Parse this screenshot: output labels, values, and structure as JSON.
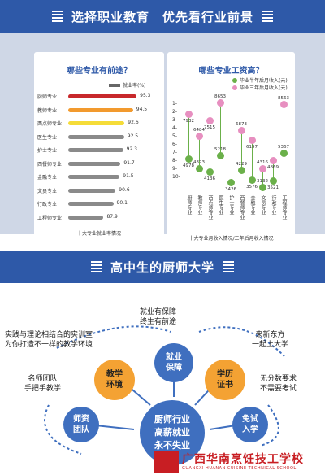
{
  "headers": {
    "top": "选择职业教育　优先看行业前景",
    "middle": "高中生的厨师大学"
  },
  "employment_chart": {
    "title": "哪些专业有前途？",
    "legend": "就业率(%)",
    "caption": "十大专业就业率情况",
    "majors": [
      "厨师专业",
      "教师专业",
      "西点师专业",
      "医生专业",
      "护士专业",
      "西餐师专业",
      "金融专业",
      "文员专业",
      "行政专业",
      "工程师专业"
    ],
    "values": [
      95.3,
      94.5,
      92.6,
      92.5,
      92.3,
      91.7,
      91.5,
      90.6,
      90.1,
      87.9
    ],
    "value_labels": [
      "95.3",
      "94.5",
      "92.6",
      "92.5",
      "92.3",
      "91.7",
      "91.5",
      "90.6",
      "90.1",
      "87.9"
    ],
    "colors": [
      "#c8282b",
      "#f29a2e",
      "#f5dc38",
      "#8a8a8a",
      "#8a8a8a",
      "#8a8a8a",
      "#8a8a8a",
      "#8a8a8a",
      "#8a8a8a",
      "#8a8a8a"
    ]
  },
  "salary_chart": {
    "title": "哪些专业工资高？",
    "legend_half": "毕业半年后月收入(元)",
    "legend_three": "毕业三年后月收入(元)",
    "caption": "十大专业月收入情况/三年后月收入情况",
    "ranks": [
      "1-",
      "2-",
      "3-",
      "4-",
      "5-",
      "6-",
      "7-",
      "8-",
      "9-",
      "10-"
    ],
    "majors": [
      "厨师专业",
      "教师专业",
      "西点师专业",
      "医生专业",
      "护士专业",
      "西餐师专业",
      "金融专业",
      "文员专业",
      "行政专业",
      "工程师专业"
    ],
    "half_year": [
      4978,
      4323,
      4136,
      5218,
      3426,
      4229,
      3576,
      3132,
      3521,
      5367
    ],
    "three_year": [
      7932,
      6484,
      7515,
      8653,
      null,
      6873,
      6197,
      4316,
      4869,
      8563
    ],
    "half_year_labels": [
      "4978",
      "4323",
      "4136",
      "5218",
      "3426",
      "4229",
      "3576",
      "3132",
      "3521",
      "5367"
    ],
    "three_year_labels": [
      "7932",
      "6484",
      "7515",
      "8653",
      "",
      "6873",
      "6197",
      "4316",
      "4869",
      "8563"
    ],
    "color_half": "#6bb04a",
    "color_three": "#e78fc0"
  },
  "diagram": {
    "center": "厨师行业\n高薪就业\n永不失业",
    "nodes": {
      "employ": "就业\n保障",
      "teach": "教学\n环境",
      "cert": "学历\n证书",
      "team": "师资\n团队",
      "exam": "免试\n入学"
    },
    "texts": {
      "employ": "就业有保障\n终生有前途",
      "teach": "实践与理论相结合的实训室\n为你打造不一样的教学环境",
      "cert": "来新东方\n一起上大学",
      "team": "名师团队\n手把手教学",
      "exam": "无分数要求\n不需要考试"
    },
    "colors": {
      "blue": "#3f6fbf",
      "orange": "#f4a233"
    }
  },
  "footer": {
    "school_cn": "广西华南烹饪技工学校",
    "school_en": "GUANGXI HUANAN CUISINE TECHNICAL SCHOOL"
  }
}
